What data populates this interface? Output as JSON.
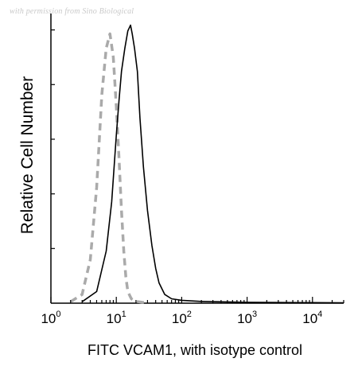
{
  "watermark": "with permission from Sino Biological",
  "chart_data": {
    "type": "area",
    "xlabel": "FITC VCAM1, with isotype control",
    "ylabel": "Relative Cell Number",
    "xscale": "log",
    "xlim": [
      1,
      30000
    ],
    "ylim": [
      0,
      100
    ],
    "grid": false,
    "x_ticks": [
      {
        "base": "10",
        "exp": "0",
        "value": 1
      },
      {
        "base": "10",
        "exp": "1",
        "value": 10
      },
      {
        "base": "10",
        "exp": "2",
        "value": 100
      },
      {
        "base": "10",
        "exp": "3",
        "value": 1000
      },
      {
        "base": "10",
        "exp": "4",
        "value": 10000
      }
    ],
    "series": [
      {
        "role": "sample",
        "color": "#000000",
        "style": "solid",
        "x": [
          3,
          5,
          7,
          8.5,
          10,
          11,
          12,
          13.5,
          15,
          16.5,
          17.5,
          19,
          21,
          23,
          26,
          30,
          35,
          40,
          45,
          55,
          70,
          100,
          200,
          1000,
          10000,
          30000
        ],
        "y": [
          0.5,
          4,
          18,
          35,
          58,
          70,
          80,
          88,
          94,
          96,
          93,
          88,
          80,
          64,
          47,
          32,
          20,
          12,
          7,
          3,
          1.5,
          1,
          0.6,
          0.3,
          0.2,
          0.1
        ]
      },
      {
        "role": "isotype control",
        "color": "#aaaaaa",
        "style": "dashed",
        "x": [
          2,
          3,
          4,
          5,
          6,
          7,
          8,
          9,
          10,
          11,
          12,
          13,
          14,
          15,
          17,
          20,
          25,
          30
        ],
        "y": [
          0.5,
          3,
          15,
          40,
          72,
          88,
          93,
          85,
          68,
          50,
          32,
          18,
          9,
          4,
          1.5,
          0.6,
          0.3,
          0.1
        ]
      }
    ]
  }
}
